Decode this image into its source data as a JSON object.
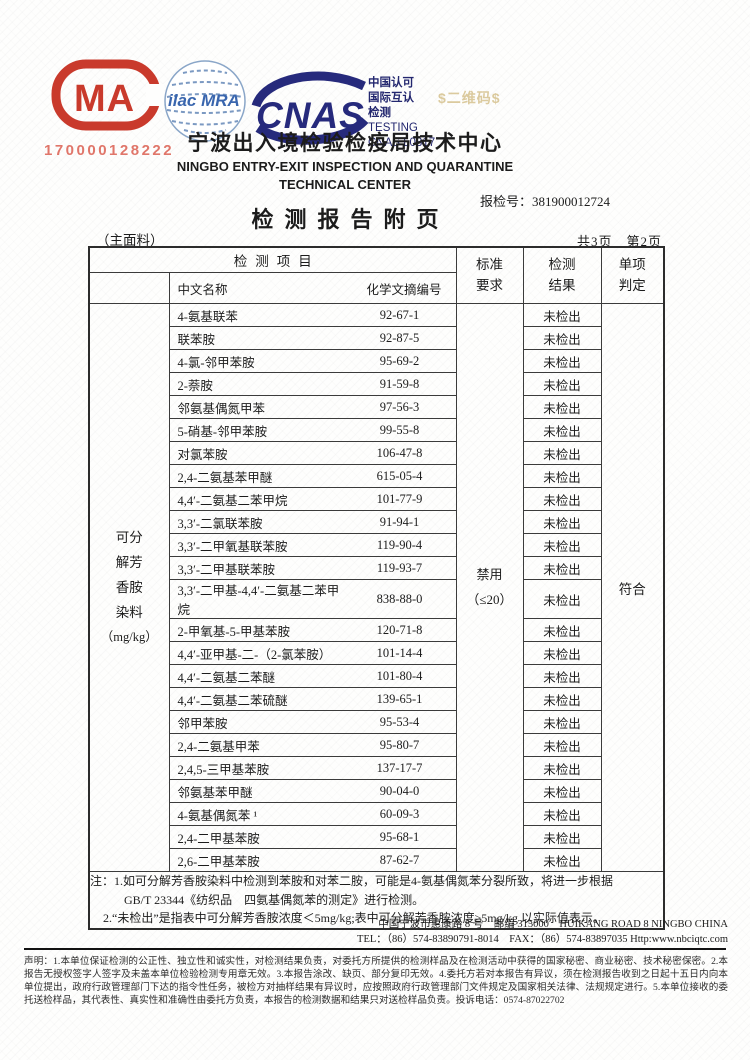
{
  "certification": {
    "cma": {
      "number": "170000128222"
    },
    "ilac": {
      "label": "ilac MRA"
    },
    "cnas": {
      "label": "CNAS"
    },
    "accreditation_zh": [
      "中国认可",
      "国际互认",
      "检测"
    ],
    "accreditation_en": [
      "TESTING",
      "CNAS L0317"
    ]
  },
  "watermark": "$二维码$",
  "header": {
    "org_zh": "宁波出入境检验检疫局技术中心",
    "org_en1": "NINGBO ENTRY-EXIT INSPECTION AND QUARANTINE",
    "org_en2": "TECHNICAL CENTER",
    "report_no": "报检号：381900012724",
    "doc_title": "检测报告附页",
    "sample_note": "（主面料）",
    "page_info": "共3页　第2页"
  },
  "table": {
    "header": {
      "project": "检测项目",
      "name": "中文名称",
      "cas": "化学文摘编号",
      "standard": [
        "标准",
        "要求"
      ],
      "result": [
        "检测",
        "结果"
      ],
      "judgment": [
        "单项",
        "判定"
      ]
    },
    "category_lines": [
      "可分",
      "解芳",
      "香胺",
      "染料",
      "（mg/kg）"
    ],
    "standard_value": [
      "禁用",
      "（≤20）"
    ],
    "judgment_value": "符合",
    "rows": [
      {
        "name": "4-氨基联苯",
        "cas": "92-67-1",
        "result": "未检出"
      },
      {
        "name": "联苯胺",
        "cas": "92-87-5",
        "result": "未检出"
      },
      {
        "name": "4-氯-邻甲苯胺",
        "cas": "95-69-2",
        "result": "未检出"
      },
      {
        "name": "2-萘胺",
        "cas": "91-59-8",
        "result": "未检出"
      },
      {
        "name": "邻氨基偶氮甲苯",
        "cas": "97-56-3",
        "result": "未检出"
      },
      {
        "name": "5-硝基-邻甲苯胺",
        "cas": "99-55-8",
        "result": "未检出"
      },
      {
        "name": "对氯苯胺",
        "cas": "106-47-8",
        "result": "未检出"
      },
      {
        "name": "2,4-二氨基苯甲醚",
        "cas": "615-05-4",
        "result": "未检出"
      },
      {
        "name": "4,4′-二氨基二苯甲烷",
        "cas": "101-77-9",
        "result": "未检出"
      },
      {
        "name": "3,3′-二氯联苯胺",
        "cas": "91-94-1",
        "result": "未检出"
      },
      {
        "name": "3,3′-二甲氧基联苯胺",
        "cas": "119-90-4",
        "result": "未检出"
      },
      {
        "name": "3,3′-二甲基联苯胺",
        "cas": "119-93-7",
        "result": "未检出"
      },
      {
        "name": "3,3′-二甲基-4,4′-二氨基二苯甲烷",
        "cas": "838-88-0",
        "result": "未检出"
      },
      {
        "name": "2-甲氧基-5-甲基苯胺",
        "cas": "120-71-8",
        "result": "未检出"
      },
      {
        "name": "4,4′-亚甲基-二-（2-氯苯胺）",
        "cas": "101-14-4",
        "result": "未检出"
      },
      {
        "name": "4,4′-二氨基二苯醚",
        "cas": "101-80-4",
        "result": "未检出"
      },
      {
        "name": "4,4′-二氨基二苯硫醚",
        "cas": "139-65-1",
        "result": "未检出"
      },
      {
        "name": "邻甲苯胺",
        "cas": "95-53-4",
        "result": "未检出"
      },
      {
        "name": "2,4-二氨基甲苯",
        "cas": "95-80-7",
        "result": "未检出"
      },
      {
        "name": "2,4,5-三甲基苯胺",
        "cas": "137-17-7",
        "result": "未检出"
      },
      {
        "name": "邻氨基苯甲醚",
        "cas": "90-04-0",
        "result": "未检出"
      },
      {
        "name": "4-氨基偶氮苯 ¹",
        "cas": "60-09-3",
        "result": "未检出"
      },
      {
        "name": "2,4-二甲基苯胺",
        "cas": "95-68-1",
        "result": "未检出"
      },
      {
        "name": "2,6-二甲基苯胺",
        "cas": "87-62-7",
        "result": "未检出"
      }
    ],
    "notes": [
      "注：1.如可分解芳香胺染料中检测到苯胺和对苯二胺，可能是4-氨基偶氮苯分裂所致，将进一步根据",
      "GB/T 23344《纺织品　四氨基偶氮苯的测定》进行检测。",
      "2.“未检出”是指表中可分解芳香胺浓度＜5mg/kg;表中可分解芳香胺浓度≥5mg/kg 以实际值表示。"
    ]
  },
  "footer": {
    "address": "中国宁波市惠康路 8 号　邮编 315000　HUIKANG ROAD 8 NINGBO CHINA",
    "contact": "TEL：（86）574-83890791-8014　FAX：（86）574-83897035 Http:www.nbciqtc.com",
    "declaration": "声明：1.本单位保证检测的公正性、独立性和诚实性，对检测结果负责，对委托方所提供的检测样品及在检测活动中获得的国家秘密、商业秘密、技术秘密保密。2.本报告无授权签字人签字及未盖本单位检验检测专用章无效。3.本报告涂改、缺页、部分复印无效。4.委托方若对本报告有异议，须在检测报告收到之日起十五日内向本单位提出，政府行政管理部门下达的指令性任务，被检方对抽样结果有异议时，应按照政府行政管理部门文件规定及国家相关法律、法规规定进行。5.本单位接收的委托送检样品，其代表性、真实性和准确性由委托方负责，本报告的检测数据和结果只对送检样品负责。投诉电话：0574-87022702"
  },
  "colors": {
    "accent_red": "#c93a2c",
    "accent_navy": "#262a7c",
    "gold": "#dbca9e"
  }
}
